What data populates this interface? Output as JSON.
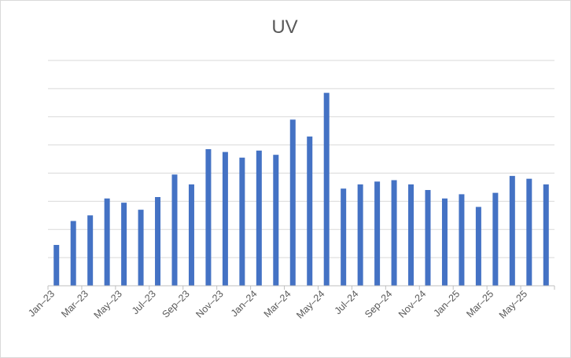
{
  "chart_data": {
    "type": "bar",
    "title": "UV",
    "xlabel": "",
    "ylabel": "",
    "y_axis_labels_visible": false,
    "grid": true,
    "legend": "none",
    "ylim": [
      0,
      8
    ],
    "categories": [
      "Jan–23",
      "Feb–23",
      "Mar–23",
      "Apr–23",
      "May–23",
      "Jun–23",
      "Jul–23",
      "Aug–23",
      "Sep–23",
      "Oct–23",
      "Nov–23",
      "Dec–23",
      "Jan–24",
      "Feb–24",
      "Mar–24",
      "Apr–24",
      "May–24",
      "Jun–24",
      "Jul–24",
      "Aug–24",
      "Sep–24",
      "Oct–24",
      "Nov–24",
      "Dec–24",
      "Jan–25",
      "Feb–25",
      "Mar–25",
      "Apr–25",
      "May–25",
      "Jun–25"
    ],
    "x_tick_labels": [
      "Jan–23",
      "Mar–23",
      "May–23",
      "Jul–23",
      "Sep–23",
      "Nov–23",
      "Jan–24",
      "Mar–24",
      "May–24",
      "Jul–24",
      "Sep–24",
      "Nov–24",
      "Jan–25",
      "Mar–25",
      "May–25"
    ],
    "values": [
      1.45,
      2.3,
      2.5,
      3.1,
      2.95,
      2.7,
      3.15,
      3.95,
      3.6,
      4.85,
      4.75,
      4.55,
      4.8,
      4.65,
      5.9,
      5.3,
      6.85,
      3.45,
      3.6,
      3.7,
      3.75,
      3.6,
      3.4,
      3.1,
      3.25,
      2.8,
      3.3,
      3.9,
      3.8,
      3.6
    ],
    "colors": {
      "bar": "#4472c4",
      "grid": "#d9d9d9",
      "axis": "#bfbfbf",
      "text": "#595959"
    }
  }
}
